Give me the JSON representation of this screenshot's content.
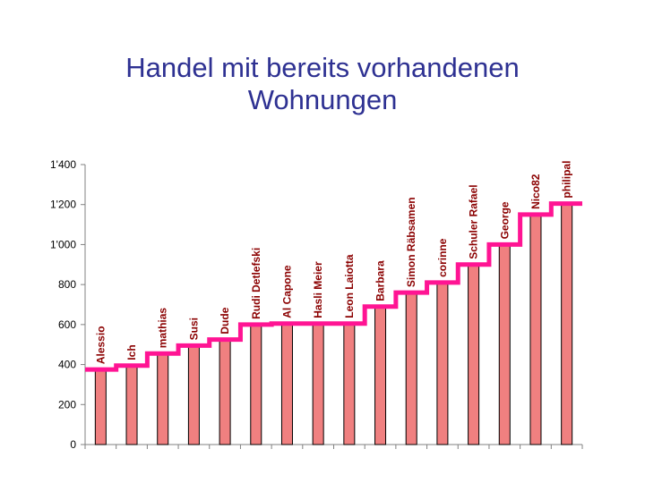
{
  "chart_data": {
    "type": "bar",
    "title_lines": [
      "Handel mit bereits vorhandenen",
      "Wohnungen"
    ],
    "categories": [
      "Alessio",
      "Ich",
      "mathias",
      "Susi",
      "Dude",
      "Rudi Detlefski",
      "Al Capone",
      "Hasli Meier",
      "Leon Laiotta",
      "Barbara",
      "Simon Räbsamen",
      "corinne",
      "Schuler Rafael",
      "George",
      "Nico82",
      "philipal"
    ],
    "values": [
      375,
      395,
      455,
      495,
      525,
      600,
      605,
      605,
      605,
      690,
      760,
      810,
      900,
      1000,
      1150,
      1205
    ],
    "step_line": [
      375,
      395,
      455,
      495,
      525,
      600,
      605,
      605,
      605,
      690,
      760,
      810,
      900,
      1000,
      1150,
      1205
    ],
    "y_ticks": [
      "0",
      "200",
      "400",
      "600",
      "800",
      "1'000",
      "1'200",
      "1'400"
    ],
    "ylim": [
      0,
      1400
    ],
    "grid": false,
    "legend": "none",
    "colors": {
      "bar_fill": "#f08080",
      "bar_stroke": "#000000",
      "line": "#ff1493",
      "title": "#2e3192",
      "label": "#8b0000"
    }
  }
}
